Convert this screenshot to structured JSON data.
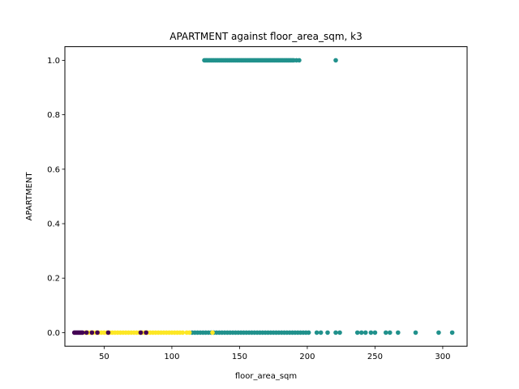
{
  "chart_data": {
    "type": "scatter",
    "title": "APARTMENT against floor_area_sqm, k3",
    "xlabel": "floor_area_sqm",
    "ylabel": "APARTMENT",
    "xlim": [
      21,
      318
    ],
    "ylim": [
      -0.05,
      1.05
    ],
    "x_ticks": [
      {
        "value": 50,
        "label": "50"
      },
      {
        "value": 100,
        "label": "100"
      },
      {
        "value": 150,
        "label": "150"
      },
      {
        "value": 200,
        "label": "200"
      },
      {
        "value": 250,
        "label": "250"
      },
      {
        "value": 300,
        "label": "300"
      }
    ],
    "y_ticks": [
      {
        "value": 0.0,
        "label": "0.0"
      },
      {
        "value": 0.2,
        "label": "0.2"
      },
      {
        "value": 0.4,
        "label": "0.4"
      },
      {
        "value": 0.6,
        "label": "0.6"
      },
      {
        "value": 0.8,
        "label": "0.8"
      },
      {
        "value": 1.0,
        "label": "1.0"
      }
    ],
    "grid": false,
    "legend": "none",
    "clusters": [
      {
        "color": "#21918c",
        "points": [
          [
            124,
            1
          ],
          [
            125,
            1
          ],
          [
            126,
            1
          ],
          [
            127,
            1
          ],
          [
            128,
            1
          ],
          [
            129,
            1
          ],
          [
            130,
            1
          ],
          [
            131,
            1
          ],
          [
            132,
            1
          ],
          [
            133,
            1
          ],
          [
            134,
            1
          ],
          [
            135,
            1
          ],
          [
            136,
            1
          ],
          [
            137,
            1
          ],
          [
            138,
            1
          ],
          [
            139,
            1
          ],
          [
            140,
            1
          ],
          [
            141,
            1
          ],
          [
            142,
            1
          ],
          [
            143,
            1
          ],
          [
            144,
            1
          ],
          [
            145,
            1
          ],
          [
            146,
            1
          ],
          [
            147,
            1
          ],
          [
            148,
            1
          ],
          [
            149,
            1
          ],
          [
            150,
            1
          ],
          [
            151,
            1
          ],
          [
            152,
            1
          ],
          [
            153,
            1
          ],
          [
            154,
            1
          ],
          [
            155,
            1
          ],
          [
            156,
            1
          ],
          [
            157,
            1
          ],
          [
            158,
            1
          ],
          [
            159,
            1
          ],
          [
            160,
            1
          ],
          [
            161,
            1
          ],
          [
            162,
            1
          ],
          [
            163,
            1
          ],
          [
            164,
            1
          ],
          [
            165,
            1
          ],
          [
            166,
            1
          ],
          [
            167,
            1
          ],
          [
            168,
            1
          ],
          [
            169,
            1
          ],
          [
            170,
            1
          ],
          [
            171,
            1
          ],
          [
            172,
            1
          ],
          [
            173,
            1
          ],
          [
            174,
            1
          ],
          [
            175,
            1
          ],
          [
            176,
            1
          ],
          [
            177,
            1
          ],
          [
            178,
            1
          ],
          [
            179,
            1
          ],
          [
            180,
            1
          ],
          [
            181,
            1
          ],
          [
            182,
            1
          ],
          [
            183,
            1
          ],
          [
            184,
            1
          ],
          [
            185,
            1
          ],
          [
            186,
            1
          ],
          [
            187,
            1
          ],
          [
            188,
            1
          ],
          [
            189,
            1
          ],
          [
            190,
            1
          ],
          [
            192,
            1
          ],
          [
            194,
            1
          ],
          [
            221,
            1
          ],
          [
            115,
            0
          ],
          [
            117,
            0
          ],
          [
            119,
            0
          ],
          [
            121,
            0
          ],
          [
            123,
            0
          ],
          [
            125,
            0
          ],
          [
            127,
            0
          ],
          [
            129,
            0
          ],
          [
            131,
            0
          ],
          [
            133,
            0
          ],
          [
            135,
            0
          ],
          [
            137,
            0
          ],
          [
            139,
            0
          ],
          [
            141,
            0
          ],
          [
            143,
            0
          ],
          [
            145,
            0
          ],
          [
            147,
            0
          ],
          [
            149,
            0
          ],
          [
            151,
            0
          ],
          [
            153,
            0
          ],
          [
            155,
            0
          ],
          [
            157,
            0
          ],
          [
            159,
            0
          ],
          [
            161,
            0
          ],
          [
            163,
            0
          ],
          [
            165,
            0
          ],
          [
            167,
            0
          ],
          [
            169,
            0
          ],
          [
            171,
            0
          ],
          [
            173,
            0
          ],
          [
            175,
            0
          ],
          [
            177,
            0
          ],
          [
            179,
            0
          ],
          [
            181,
            0
          ],
          [
            183,
            0
          ],
          [
            185,
            0
          ],
          [
            187,
            0
          ],
          [
            189,
            0
          ],
          [
            191,
            0
          ],
          [
            193,
            0
          ],
          [
            195,
            0
          ],
          [
            197,
            0
          ],
          [
            199,
            0
          ],
          [
            201,
            0
          ],
          [
            207,
            0
          ],
          [
            210,
            0
          ],
          [
            215,
            0
          ],
          [
            221,
            0
          ],
          [
            224,
            0
          ],
          [
            237,
            0
          ],
          [
            240,
            0
          ],
          [
            243,
            0
          ],
          [
            247,
            0
          ],
          [
            250,
            0
          ],
          [
            258,
            0
          ],
          [
            261,
            0
          ],
          [
            267,
            0
          ],
          [
            280,
            0
          ],
          [
            297,
            0
          ],
          [
            307,
            0
          ]
        ]
      },
      {
        "color": "#fde725",
        "points": [
          [
            36,
            0
          ],
          [
            38,
            0
          ],
          [
            40,
            0
          ],
          [
            42,
            0
          ],
          [
            44,
            0
          ],
          [
            46,
            0
          ],
          [
            48,
            0
          ],
          [
            50,
            0
          ],
          [
            52,
            0
          ],
          [
            54,
            0
          ],
          [
            56,
            0
          ],
          [
            58,
            0
          ],
          [
            60,
            0
          ],
          [
            62,
            0
          ],
          [
            64,
            0
          ],
          [
            66,
            0
          ],
          [
            68,
            0
          ],
          [
            70,
            0
          ],
          [
            72,
            0
          ],
          [
            74,
            0
          ],
          [
            76,
            0
          ],
          [
            78,
            0
          ],
          [
            80,
            0
          ],
          [
            82,
            0
          ],
          [
            84,
            0
          ],
          [
            86,
            0
          ],
          [
            88,
            0
          ],
          [
            90,
            0
          ],
          [
            92,
            0
          ],
          [
            94,
            0
          ],
          [
            96,
            0
          ],
          [
            98,
            0
          ],
          [
            100,
            0
          ],
          [
            102,
            0
          ],
          [
            104,
            0
          ],
          [
            106,
            0
          ],
          [
            108,
            0
          ],
          [
            111,
            0
          ],
          [
            113,
            0
          ],
          [
            130,
            0
          ]
        ]
      },
      {
        "color": "#440154",
        "points": [
          [
            28,
            0
          ],
          [
            29,
            0
          ],
          [
            30,
            0
          ],
          [
            31,
            0
          ],
          [
            32,
            0
          ],
          [
            33,
            0
          ],
          [
            34,
            0
          ],
          [
            37,
            0
          ],
          [
            41,
            0
          ],
          [
            45,
            0
          ],
          [
            53,
            0
          ],
          [
            77,
            0
          ],
          [
            81,
            0
          ]
        ]
      }
    ]
  }
}
